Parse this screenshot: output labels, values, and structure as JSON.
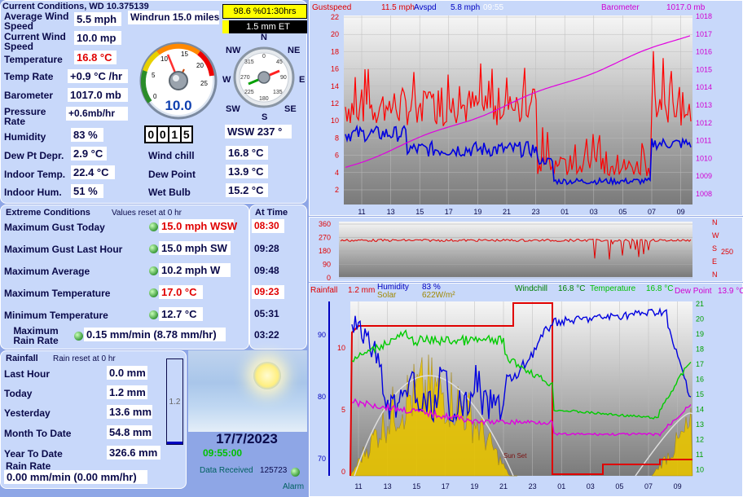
{
  "current": {
    "title": "Current Conditions, WD 10.375139",
    "windrun": "Windrun 15.0 miles",
    "sunshine": "98.6 %01:30hrs",
    "et": "1.5 mm ET",
    "rows": [
      {
        "label": "Average Wind Speed",
        "value": "5.5 mph"
      },
      {
        "label": "Current Wind Speed",
        "value": "10.0 mp"
      },
      {
        "label": "Temperature",
        "value": "16.8 °C"
      },
      {
        "label": "Temp Rate",
        "value": "+0.9 °C /hr"
      },
      {
        "label": "Barometer",
        "value": "1017.0 mb"
      },
      {
        "label": "Pressure Rate",
        "value": "+0.6mb/hr"
      },
      {
        "label": "Humidity",
        "value": "83 %"
      },
      {
        "label": "Dew Pt Depr.",
        "value": "2.9 °C"
      },
      {
        "label": "Indoor Temp.",
        "value": "22.4 °C"
      },
      {
        "label": "Indoor Hum.",
        "value": "51 %"
      }
    ],
    "gauge_value": "10.0",
    "gauge_ticks": [
      "0",
      "5",
      "10",
      "15",
      "20",
      "25"
    ],
    "odometer": [
      "0",
      "0",
      "1",
      "5"
    ],
    "compass": {
      "n": "N",
      "ne": "NE",
      "e": "E",
      "se": "SE",
      "s": "S",
      "sw": "SW",
      "w": "W",
      "nw": "NW",
      "ticks": [
        "0",
        "45",
        "90",
        "135",
        "180",
        "225",
        "270",
        "315"
      ]
    },
    "wind_dir": "WSW  237 °",
    "right_rows": [
      {
        "label": "Wind chill",
        "value": "16.8 °C"
      },
      {
        "label": "Dew Point",
        "value": "13.9 °C"
      },
      {
        "label": "Wet Bulb",
        "value": "15.2 °C"
      }
    ]
  },
  "extremes": {
    "title": "Extreme Conditions",
    "note": "Values reset at 0 hr",
    "at_time_title": "At Time",
    "rows": [
      {
        "label": "Maximum Gust Today",
        "value": "15.0 mph WSW",
        "time": "08:30",
        "red": true
      },
      {
        "label": "Maximum Gust Last Hour",
        "value": "15.0 mph  SW",
        "time": "09:28",
        "red": false
      },
      {
        "label": "Maximum Average",
        "value": "10.2 mph   W",
        "time": "09:48",
        "red": false
      },
      {
        "label": "Maximum Temperature",
        "value": "17.0 °C",
        "time": "09:23",
        "red": true
      },
      {
        "label": "Minimum Temperature",
        "value": "12.7 °C",
        "time": "05:31",
        "red": false
      },
      {
        "label": "Maximum Rain Rate",
        "value": "0.15 mm/min (8.78 mm/hr)",
        "time": "03:22",
        "red": false
      }
    ]
  },
  "rainfall": {
    "title": "Rainfall",
    "note": "Rain reset at 0 hr",
    "rows": [
      {
        "label": "Last Hour",
        "value": "0.0 mm"
      },
      {
        "label": "Today",
        "value": "1.2 mm"
      },
      {
        "label": "Yesterday",
        "value": "13.6 mm"
      },
      {
        "label": "Month To Date",
        "value": "54.8 mm"
      },
      {
        "label": "Year To Date",
        "value": "326.6 mm"
      }
    ],
    "rate_label": "Rain Rate",
    "rate_value": "0.00 mm/min (0.00 mm/hr)",
    "gauge_label": "1.2"
  },
  "status": {
    "date": "17/7/2023",
    "time": "09:55:00",
    "data_received_label": "Data Received",
    "data_received_count": "125723",
    "alarm_label": "Alarm"
  },
  "graph_top": {
    "gust_label": "Gustspeed",
    "gust_value": "11.5 mph",
    "avg_label": "Avspd",
    "avg_value": "5.8 mph",
    "time": "09:55",
    "baro_label": "Barometer",
    "baro_value": "1017.0 mb",
    "y_left": [
      "22",
      "20",
      "18",
      "16",
      "14",
      "12",
      "10",
      "8",
      "6",
      "4",
      "2"
    ],
    "y_right": [
      "1018",
      "1017",
      "1016",
      "1015",
      "1014",
      "1013",
      "1012",
      "1011",
      "1010",
      "1009",
      "1008"
    ],
    "x_labels": [
      "11",
      "13",
      "15",
      "17",
      "19",
      "21",
      "23",
      "01",
      "03",
      "05",
      "07",
      "09"
    ]
  },
  "graph_dir": {
    "y_labels": [
      "360",
      "270",
      "180",
      "90",
      "0"
    ],
    "right_letters": [
      "N",
      "W",
      "S",
      "E",
      "N"
    ],
    "right_value": "250"
  },
  "graph_bottom": {
    "rain_label": "Rainfall",
    "rain_value": "1.2 mm",
    "hum_label": "Humidity",
    "hum_value": "83 %",
    "solar_label": "Solar",
    "solar_value": "622W/m²",
    "windchill_label": "Windchill",
    "windchill_value": "16.8 °C",
    "temp_label": "Temperature",
    "temp_value": "16.8 °C",
    "dew_label": "Dew Point",
    "dew_value": "13.9 °C",
    "sunset_label": "Sun Set",
    "y_left_hum": [
      "90",
      "80",
      "70"
    ],
    "y_left_rain": [
      "10",
      "5",
      "0"
    ],
    "y_right": [
      "21",
      "20",
      "19",
      "18",
      "17",
      "16",
      "15",
      "14",
      "13",
      "12",
      "11",
      "10"
    ],
    "x_labels": [
      "11",
      "13",
      "15",
      "17",
      "19",
      "21",
      "23",
      "01",
      "03",
      "05",
      "07",
      "09"
    ]
  },
  "colors": {
    "panel": "#c8d8fa",
    "background": "#8ea6e6",
    "gust": "#ff0000",
    "average": "#0000e0",
    "barometer": "#e000e0",
    "temperature": "#00cc00",
    "solar": "#e8c400"
  }
}
